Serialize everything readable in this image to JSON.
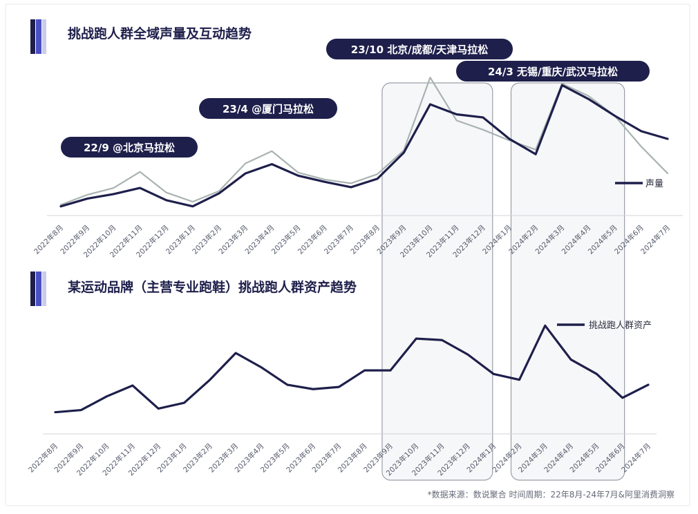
{
  "colors": {
    "primary": "#1e1f4b",
    "accent_bar": "#4a4fc4",
    "accent_bar_light": "#c9cbef",
    "secondary_line": "#a9b3b1",
    "highlight_fill": "#eef0f2",
    "highlight_stroke": "#9a9ea8",
    "pill": "#1e1f4b",
    "axis": "#d0d3d8"
  },
  "chart_data": [
    {
      "type": "line",
      "title": "挑战跑人群全域声量及互动趋势",
      "categories": [
        "2022年8月",
        "2022年9月",
        "2022年10月",
        "2022年11月",
        "2022年12月",
        "2023年1月",
        "2023年2月",
        "2023年3月",
        "2023年4月",
        "2023年5月",
        "2023年6月",
        "2023年7月",
        "2023年8月",
        "2023年9月",
        "2023年10月",
        "2023年11月",
        "2023年12月",
        "2024年1月",
        "2024年2月",
        "2024年3月",
        "2024年4月",
        "2024年5月",
        "2024年6月",
        "2024年7月"
      ],
      "series": [
        {
          "name": "声量",
          "values": [
            12,
            22,
            28,
            36,
            20,
            12,
            29,
            55,
            67,
            52,
            44,
            37,
            48,
            82,
            145,
            132,
            128,
            100,
            80,
            170,
            152,
            130,
            110,
            100
          ]
        },
        {
          "values": [
            14,
            27,
            36,
            57,
            30,
            18,
            32,
            68,
            84,
            56,
            47,
            42,
            54,
            85,
            180,
            124,
            112,
            98,
            86,
            172,
            156,
            130,
            90,
            55
          ]
        }
      ],
      "ylim": [
        0,
        200
      ],
      "annotations": [
        {
          "text": "22/9 @北京马拉松"
        },
        {
          "text": "23/4 @厦门马拉松"
        },
        {
          "text": "23/10 北京/成都/天津马拉松"
        },
        {
          "text": "24/3 无锡/重庆/武汉马拉松"
        }
      ]
    },
    {
      "type": "line",
      "title": "某运动品牌（主营专业跑鞋）挑战跑人群资产趋势",
      "categories": [
        "2022年8月",
        "2022年9月",
        "2022年10月",
        "2022年11月",
        "2022年12月",
        "2023年1月",
        "2023年2月",
        "2023年3月",
        "2023年4月",
        "2023年5月",
        "2023年6月",
        "2023年7月",
        "2023年8月",
        "2023年9月",
        "2023年10月",
        "2023年11月",
        "2023年12月",
        "2024年1月",
        "2024年2月",
        "2024年3月",
        "2024年4月",
        "2024年5月",
        "2024年6月",
        "2024年7月"
      ],
      "series": [
        {
          "name": "挑战跑人群资产",
          "values": [
            30,
            33,
            52,
            67,
            35,
            43,
            75,
            112,
            92,
            68,
            62,
            65,
            88,
            88,
            132,
            130,
            110,
            83,
            75,
            150,
            103,
            83,
            50,
            68
          ]
        }
      ],
      "ylim": [
        0,
        180
      ]
    }
  ],
  "source_note": "*数据来源：数说聚合  时间周期：22年8月-24年7月&阿里消费洞察"
}
